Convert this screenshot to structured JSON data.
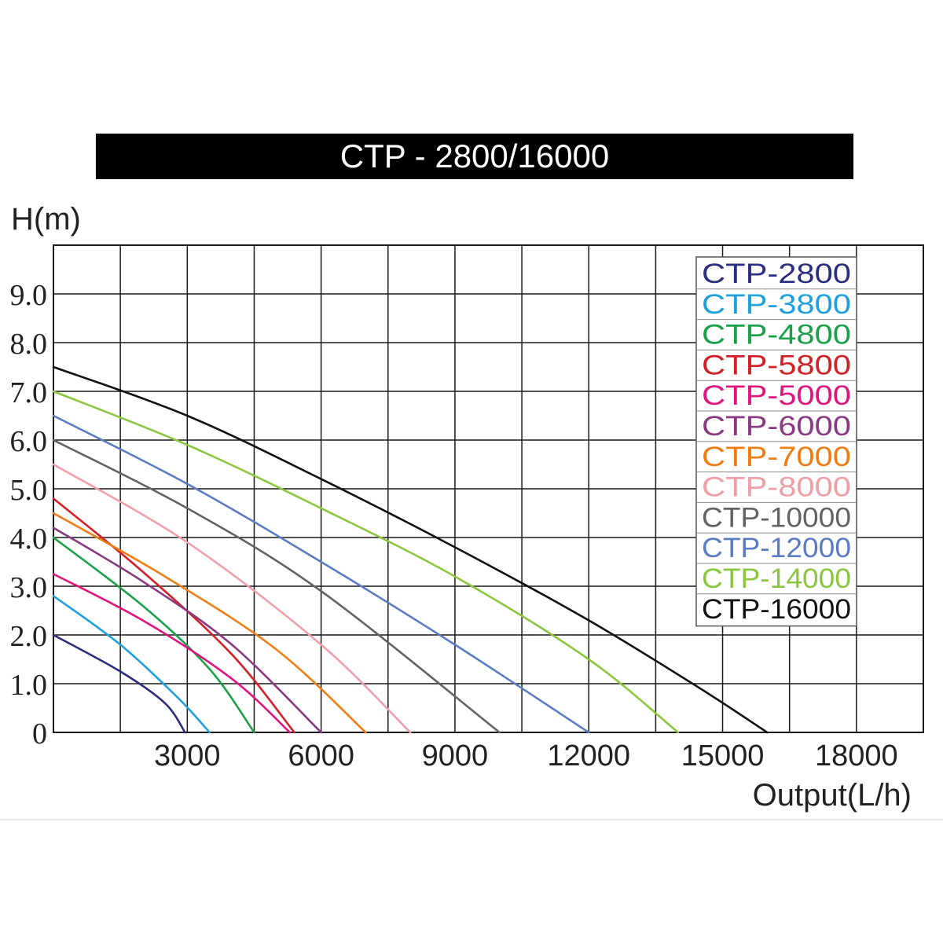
{
  "chart_data": {
    "type": "line",
    "title": "CTP - 2800/16000",
    "ylabel": "H(m)",
    "xlabel": "Output(L/h)",
    "xlim": [
      0,
      19500
    ],
    "ylim": [
      0,
      10
    ],
    "grid": true,
    "legend_position": "top-right",
    "x_ticks": [
      {
        "value": 3000,
        "label": "3000"
      },
      {
        "value": 6000,
        "label": "6000"
      },
      {
        "value": 9000,
        "label": "9000"
      },
      {
        "value": 12000,
        "label": "12000"
      },
      {
        "value": 15000,
        "label": "15000"
      },
      {
        "value": 18000,
        "label": "18000"
      }
    ],
    "y_ticks": [
      {
        "value": 0,
        "label": "0"
      },
      {
        "value": 1,
        "label": "1.0"
      },
      {
        "value": 2,
        "label": "2.0"
      },
      {
        "value": 3,
        "label": "3.0"
      },
      {
        "value": 4,
        "label": "4.0"
      },
      {
        "value": 5,
        "label": "5.0"
      },
      {
        "value": 6,
        "label": "6.0"
      },
      {
        "value": 7,
        "label": "7.0"
      },
      {
        "value": 8,
        "label": "8.0"
      },
      {
        "value": 9,
        "label": "9.0"
      }
    ],
    "series": [
      {
        "name": "CTP-2800",
        "color": "#2b2d7e",
        "points": [
          [
            0,
            2.0
          ],
          [
            1500,
            1.25
          ],
          [
            2500,
            0.6
          ],
          [
            2950,
            0
          ]
        ]
      },
      {
        "name": "CTP-3800",
        "color": "#1ea0dc",
        "points": [
          [
            0,
            2.8
          ],
          [
            1500,
            1.8
          ],
          [
            2800,
            0.7
          ],
          [
            3500,
            0
          ]
        ]
      },
      {
        "name": "CTP-4800",
        "color": "#1aa048",
        "points": [
          [
            0,
            4.0
          ],
          [
            2000,
            2.6
          ],
          [
            3500,
            1.3
          ],
          [
            4500,
            0
          ]
        ]
      },
      {
        "name": "CTP-5800",
        "color": "#d32027",
        "points": [
          [
            0,
            4.8
          ],
          [
            2000,
            3.3
          ],
          [
            4000,
            1.6
          ],
          [
            5400,
            0
          ]
        ]
      },
      {
        "name": "CTP-5000",
        "color": "#e0157c",
        "points": [
          [
            0,
            3.25
          ],
          [
            2000,
            2.3
          ],
          [
            4000,
            1.1
          ],
          [
            5300,
            0
          ]
        ]
      },
      {
        "name": "CTP-6000",
        "color": "#8a3a82",
        "points": [
          [
            0,
            4.2
          ],
          [
            2000,
            3.1
          ],
          [
            4000,
            1.8
          ],
          [
            6000,
            0
          ]
        ]
      },
      {
        "name": "CTP-7000",
        "color": "#ef7d14",
        "points": [
          [
            0,
            4.5
          ],
          [
            2500,
            3.2
          ],
          [
            5000,
            1.7
          ],
          [
            7000,
            0
          ]
        ]
      },
      {
        "name": "CTP-8000",
        "color": "#eea0a8",
        "points": [
          [
            0,
            5.5
          ],
          [
            3000,
            3.9
          ],
          [
            6000,
            1.8
          ],
          [
            8000,
            0
          ]
        ]
      },
      {
        "name": "CTP-10000",
        "color": "#636363",
        "points": [
          [
            0,
            6.0
          ],
          [
            3000,
            4.6
          ],
          [
            6000,
            2.9
          ],
          [
            10000,
            0
          ]
        ]
      },
      {
        "name": "CTP-12000",
        "color": "#5b7cc4",
        "points": [
          [
            0,
            6.5
          ],
          [
            3000,
            5.1
          ],
          [
            6000,
            3.5
          ],
          [
            9000,
            1.8
          ],
          [
            12000,
            0
          ]
        ]
      },
      {
        "name": "CTP-14000",
        "color": "#8cc63e",
        "points": [
          [
            0,
            7.0
          ],
          [
            3000,
            5.9
          ],
          [
            6000,
            4.6
          ],
          [
            9000,
            3.2
          ],
          [
            12000,
            1.5
          ],
          [
            14000,
            0
          ]
        ]
      },
      {
        "name": "CTP-16000",
        "color": "#111111",
        "points": [
          [
            0,
            7.5
          ],
          [
            3000,
            6.5
          ],
          [
            6000,
            5.2
          ],
          [
            9000,
            3.8
          ],
          [
            12000,
            2.3
          ],
          [
            14500,
            0.9
          ],
          [
            16000,
            0
          ]
        ]
      }
    ]
  }
}
